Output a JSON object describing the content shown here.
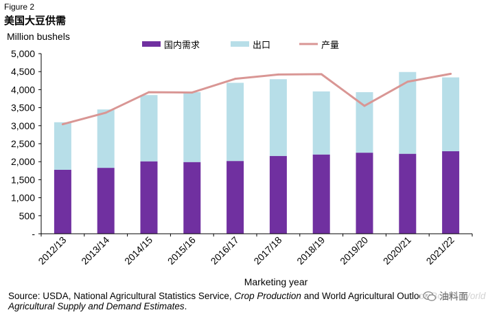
{
  "figure_label": "Figure 2",
  "title": "美国大豆供需",
  "colors": {
    "domestic": "#7030A0",
    "export": "#B7DEE8",
    "production": "#D99694",
    "axis": "#000000",
    "text": "#000000"
  },
  "chart_data": {
    "type": "bar",
    "stacked": true,
    "title": "美国大豆供需",
    "ylabel": "Million bushels",
    "xlabel": "Marketing year",
    "ylim": [
      0,
      5000
    ],
    "ytick_labels": [
      "-",
      "500",
      "1,000",
      "1,500",
      "2,000",
      "2,500",
      "3,000",
      "3,500",
      "4,000",
      "4,500",
      "5,000"
    ],
    "grid": false,
    "legend_position": "top",
    "categories": [
      "2012/13",
      "2013/14",
      "2014/15",
      "2015/16",
      "2016/17",
      "2017/18",
      "2018/19",
      "2019/20",
      "2020/21",
      "2021/22"
    ],
    "series": [
      {
        "name": "国内需求",
        "type": "bar",
        "color": "#7030A0",
        "values": [
          1775,
          1830,
          2010,
          1990,
          2020,
          2160,
          2200,
          2250,
          2220,
          2290
        ]
      },
      {
        "name": "出口",
        "type": "bar",
        "color": "#B7DEE8",
        "values": [
          1320,
          1620,
          1840,
          1940,
          2170,
          2130,
          1750,
          1680,
          2270,
          2050
        ]
      },
      {
        "name": "产量",
        "type": "line",
        "color": "#D99694",
        "values": [
          3040,
          3360,
          3930,
          3920,
          4300,
          4420,
          4430,
          3550,
          4220,
          4440
        ]
      }
    ]
  },
  "source": {
    "prefix": "Source: USDA, National Agricultural Statistics Service, ",
    "italic1": "Crop Production",
    "middle": " and World Agricultural Outlook Board, ",
    "italic2": "World Agricultural Supply and Demand Estimates",
    "suffix": "."
  },
  "watermark": {
    "text": "油料面",
    "icon": "wechat-icon"
  }
}
